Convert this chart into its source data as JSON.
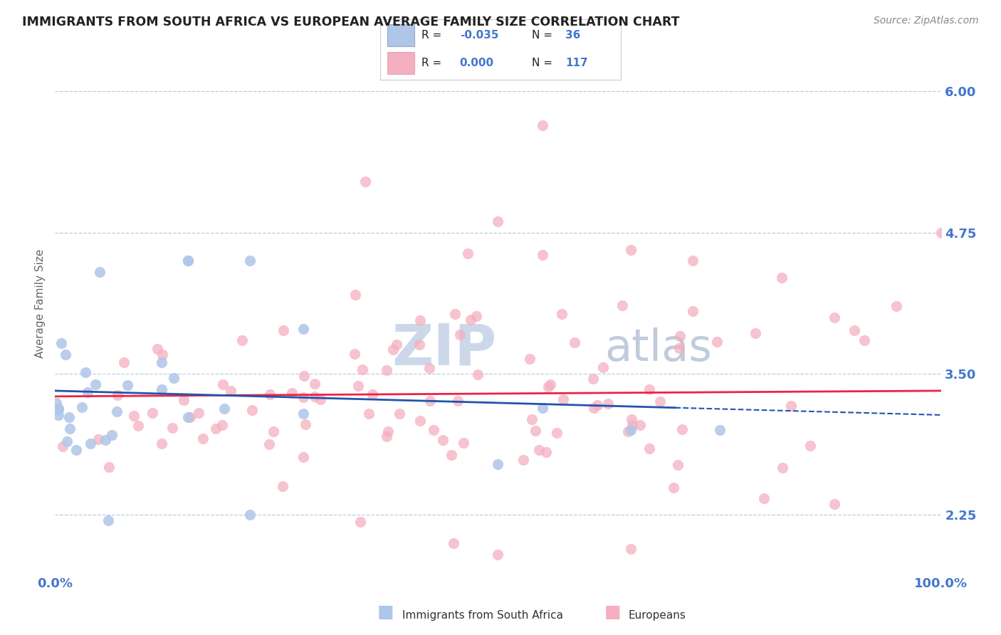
{
  "title": "IMMIGRANTS FROM SOUTH AFRICA VS EUROPEAN AVERAGE FAMILY SIZE CORRELATION CHART",
  "source": "Source: ZipAtlas.com",
  "ylabel": "Average Family Size",
  "yticks": [
    2.25,
    3.5,
    4.75,
    6.0
  ],
  "xlim": [
    0,
    100
  ],
  "ylim": [
    1.75,
    6.5
  ],
  "blue_color": "#aec6e8",
  "pink_color": "#f4afc0",
  "trend_blue_color": "#2255aa",
  "trend_pink_color": "#ee2244",
  "grid_color": "#bbcce0",
  "title_color": "#222222",
  "axis_label_color": "#4477cc",
  "watermark_zip_color": "#c5d5ea",
  "watermark_atlas_color": "#b8c8dc"
}
